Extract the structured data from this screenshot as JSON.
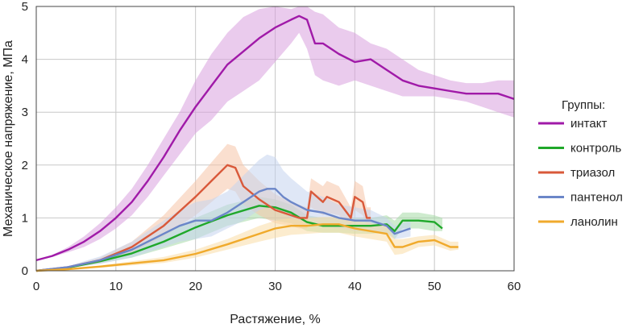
{
  "chart_data": {
    "type": "line",
    "title": "",
    "xlabel": "Растяжение, %",
    "ylabel": "Механическое напряжение, МПа",
    "xlim": [
      0,
      60
    ],
    "ylim": [
      0,
      5
    ],
    "xticks": [
      0,
      10,
      20,
      30,
      40,
      50,
      60
    ],
    "yticks": [
      0,
      1,
      2,
      3,
      4,
      5
    ],
    "grid": true,
    "legend_title": "Группы:",
    "legend_position": "right",
    "series": [
      {
        "name": "интакт",
        "color": "#a01aa8",
        "band_color": "#d9a0de",
        "x": [
          0,
          2,
          4,
          6,
          8,
          10,
          12,
          14,
          16,
          18,
          20,
          22,
          24,
          26,
          28,
          30,
          32,
          33,
          34,
          35,
          36,
          38,
          40,
          42,
          44,
          46,
          48,
          50,
          52,
          54,
          56,
          58,
          60
        ],
        "y": [
          0.2,
          0.28,
          0.4,
          0.55,
          0.75,
          1.0,
          1.3,
          1.7,
          2.15,
          2.65,
          3.1,
          3.5,
          3.9,
          4.15,
          4.4,
          4.6,
          4.75,
          4.82,
          4.75,
          4.3,
          4.3,
          4.1,
          3.95,
          4.0,
          3.8,
          3.6,
          3.5,
          3.45,
          3.4,
          3.35,
          3.35,
          3.35,
          3.25
        ],
        "lower": [
          0.2,
          0.26,
          0.35,
          0.45,
          0.6,
          0.8,
          1.05,
          1.4,
          1.8,
          2.2,
          2.6,
          2.85,
          3.2,
          3.4,
          3.6,
          3.95,
          4.3,
          4.5,
          4.2,
          3.7,
          3.6,
          3.5,
          3.6,
          3.5,
          3.4,
          3.3,
          3.3,
          3.3,
          3.25,
          3.2,
          3.1,
          3.0,
          2.9
        ],
        "upper": [
          0.2,
          0.3,
          0.45,
          0.65,
          0.9,
          1.2,
          1.55,
          2.0,
          2.5,
          3.0,
          3.6,
          4.1,
          4.5,
          4.8,
          4.95,
          5.0,
          4.95,
          5.0,
          5.0,
          4.9,
          4.85,
          4.6,
          4.5,
          4.3,
          4.2,
          4.0,
          3.8,
          3.7,
          3.6,
          3.55,
          3.55,
          3.6,
          3.6
        ]
      },
      {
        "name": "контроль",
        "color": "#1fa82a",
        "band_color": "#a6dba6",
        "x": [
          0,
          4,
          8,
          12,
          16,
          20,
          24,
          28,
          30,
          32,
          34,
          36,
          38,
          40,
          42,
          44,
          45,
          46,
          48,
          50,
          51
        ],
        "y": [
          0.0,
          0.06,
          0.18,
          0.33,
          0.55,
          0.82,
          1.05,
          1.23,
          1.2,
          1.1,
          0.92,
          0.85,
          0.85,
          0.85,
          0.85,
          0.88,
          0.75,
          0.95,
          0.95,
          0.92,
          0.8
        ],
        "lower": [
          0.0,
          0.05,
          0.14,
          0.25,
          0.42,
          0.6,
          0.85,
          1.0,
          0.95,
          0.9,
          0.75,
          0.72,
          0.72,
          0.7,
          0.7,
          0.72,
          0.6,
          0.8,
          0.8,
          0.75,
          0.75
        ],
        "upper": [
          0.0,
          0.07,
          0.22,
          0.4,
          0.68,
          1.0,
          1.25,
          1.4,
          1.35,
          1.25,
          1.05,
          1.0,
          1.0,
          1.0,
          1.0,
          1.05,
          0.95,
          1.1,
          1.1,
          1.05,
          1.0
        ]
      },
      {
        "name": "триазол",
        "color": "#d9593a",
        "band_color": "#f6c4a8",
        "x": [
          0,
          4,
          8,
          12,
          16,
          20,
          22,
          24,
          25,
          26,
          28,
          30,
          32,
          33,
          34,
          34.5,
          36,
          36.5,
          38,
          39.5,
          40,
          41,
          41.5,
          42
        ],
        "y": [
          0.0,
          0.07,
          0.2,
          0.45,
          0.85,
          1.4,
          1.7,
          2.0,
          1.95,
          1.6,
          1.35,
          1.15,
          1.05,
          1.0,
          1.0,
          1.5,
          1.3,
          1.4,
          1.3,
          1.0,
          1.4,
          1.3,
          1.0,
          1.0
        ],
        "lower": [
          0.0,
          0.06,
          0.15,
          0.35,
          0.65,
          1.05,
          1.3,
          1.55,
          1.5,
          1.25,
          1.05,
          0.9,
          0.85,
          0.8,
          0.8,
          1.2,
          1.05,
          1.1,
          1.05,
          0.85,
          1.15,
          1.05,
          0.85,
          0.85
        ],
        "upper": [
          0.0,
          0.08,
          0.25,
          0.55,
          1.05,
          1.7,
          2.05,
          2.4,
          2.35,
          2.0,
          1.7,
          1.45,
          1.3,
          1.25,
          1.2,
          1.75,
          1.6,
          1.7,
          1.6,
          1.2,
          1.7,
          1.6,
          1.2,
          1.2
        ]
      },
      {
        "name": "пантенол",
        "color": "#6b86c8",
        "band_color": "#c5d3ee",
        "x": [
          0,
          4,
          8,
          12,
          16,
          18,
          20,
          22,
          24,
          26,
          28,
          29,
          30,
          31,
          32,
          34,
          36,
          38,
          40,
          42,
          44,
          45,
          46,
          47
        ],
        "y": [
          0.0,
          0.07,
          0.2,
          0.4,
          0.7,
          0.85,
          0.95,
          0.95,
          1.1,
          1.3,
          1.5,
          1.55,
          1.55,
          1.4,
          1.3,
          1.15,
          1.1,
          1.0,
          0.95,
          0.95,
          0.85,
          0.7,
          0.75,
          0.8
        ],
        "lower": [
          0.0,
          0.05,
          0.13,
          0.25,
          0.45,
          0.55,
          0.6,
          0.65,
          0.8,
          0.95,
          1.15,
          1.2,
          1.2,
          1.1,
          1.0,
          0.9,
          0.85,
          0.8,
          0.75,
          0.75,
          0.7,
          0.6,
          0.62,
          0.65
        ],
        "upper": [
          0.0,
          0.09,
          0.27,
          0.55,
          0.95,
          1.15,
          1.3,
          1.35,
          1.5,
          1.8,
          2.1,
          2.2,
          2.15,
          1.9,
          1.75,
          1.5,
          1.4,
          1.25,
          1.2,
          1.15,
          1.0,
          0.85,
          0.9,
          0.95
        ]
      },
      {
        "name": "ланолин",
        "color": "#f0aa2c",
        "band_color": "#fadca5",
        "x": [
          0,
          4,
          8,
          12,
          16,
          20,
          24,
          28,
          30,
          32,
          34,
          36,
          38,
          40,
          42,
          44,
          45,
          46,
          48,
          50,
          52,
          53
        ],
        "y": [
          0.0,
          0.03,
          0.08,
          0.14,
          0.2,
          0.32,
          0.5,
          0.7,
          0.8,
          0.85,
          0.85,
          0.88,
          0.88,
          0.8,
          0.75,
          0.7,
          0.45,
          0.45,
          0.55,
          0.58,
          0.45,
          0.45
        ],
        "lower": [
          0.0,
          0.02,
          0.06,
          0.1,
          0.15,
          0.25,
          0.4,
          0.55,
          0.62,
          0.68,
          0.7,
          0.72,
          0.72,
          0.65,
          0.6,
          0.55,
          0.3,
          0.32,
          0.45,
          0.48,
          0.38,
          0.4
        ],
        "upper": [
          0.0,
          0.04,
          0.1,
          0.18,
          0.26,
          0.4,
          0.6,
          0.85,
          0.95,
          1.0,
          1.0,
          1.02,
          1.02,
          0.95,
          0.9,
          0.85,
          0.6,
          0.6,
          0.65,
          0.68,
          0.55,
          0.55
        ]
      }
    ]
  }
}
